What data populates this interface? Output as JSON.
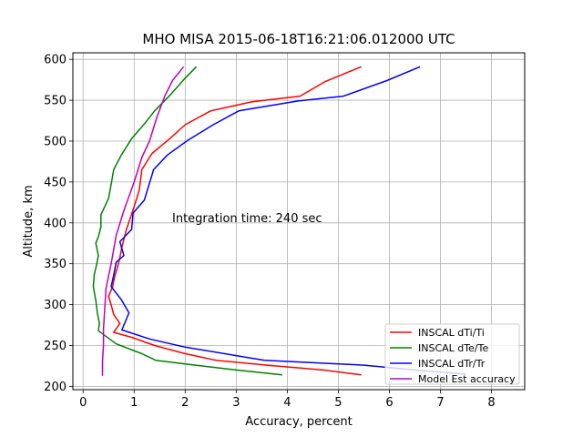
{
  "chart_data": {
    "type": "line",
    "title": "MHO MISA 2015-06-18T16:21:06.012000 UTC",
    "xlabel": "Accuracy, percent",
    "ylabel": "Altitude, km",
    "xlim": [
      -0.2,
      8.65
    ],
    "ylim": [
      196,
      608
    ],
    "xticks": [
      "0",
      "1",
      "2",
      "3",
      "4",
      "5",
      "6",
      "7",
      "8"
    ],
    "yticks": [
      "200",
      "250",
      "300",
      "350",
      "400",
      "450",
      "500",
      "550",
      "600"
    ],
    "grid": true,
    "legend_position": "lower-right",
    "annotation": "Integration time: 240 sec",
    "series": [
      {
        "name": "INSCAL dTi/Ti",
        "color": "#ff0000",
        "points": [
          [
            5.45,
            214
          ],
          [
            4.7,
            220
          ],
          [
            3.6,
            226
          ],
          [
            2.6,
            232
          ],
          [
            2.0,
            240
          ],
          [
            1.4,
            250
          ],
          [
            0.95,
            260
          ],
          [
            0.6,
            266
          ],
          [
            0.72,
            277
          ],
          [
            0.6,
            288
          ],
          [
            0.55,
            300
          ],
          [
            0.5,
            310
          ],
          [
            0.58,
            322
          ],
          [
            0.62,
            335
          ],
          [
            0.68,
            347
          ],
          [
            0.72,
            358
          ],
          [
            0.76,
            370
          ],
          [
            0.8,
            380
          ],
          [
            0.85,
            392
          ],
          [
            0.92,
            405
          ],
          [
            1.0,
            420
          ],
          [
            1.1,
            440
          ],
          [
            1.15,
            465
          ],
          [
            1.35,
            485
          ],
          [
            1.68,
            502
          ],
          [
            2.0,
            520
          ],
          [
            2.5,
            537
          ],
          [
            3.3,
            548
          ],
          [
            4.25,
            555
          ],
          [
            4.75,
            573
          ],
          [
            5.45,
            591
          ]
        ]
      },
      {
        "name": "INSCAL dTe/Te",
        "color": "#008000",
        "points": [
          [
            3.9,
            214
          ],
          [
            3.0,
            220
          ],
          [
            2.2,
            226
          ],
          [
            1.42,
            232
          ],
          [
            1.15,
            240
          ],
          [
            0.65,
            252
          ],
          [
            0.3,
            268
          ],
          [
            0.32,
            277
          ],
          [
            0.28,
            290
          ],
          [
            0.25,
            305
          ],
          [
            0.2,
            322
          ],
          [
            0.22,
            337
          ],
          [
            0.27,
            350
          ],
          [
            0.3,
            360
          ],
          [
            0.25,
            375
          ],
          [
            0.3,
            383
          ],
          [
            0.35,
            395
          ],
          [
            0.35,
            410
          ],
          [
            0.5,
            430
          ],
          [
            0.55,
            447
          ],
          [
            0.6,
            465
          ],
          [
            0.75,
            483
          ],
          [
            0.95,
            503
          ],
          [
            1.2,
            521
          ],
          [
            1.4,
            537
          ],
          [
            1.7,
            556
          ],
          [
            2.0,
            577
          ],
          [
            2.22,
            591
          ]
        ]
      },
      {
        "name": "INSCAL dTr/Tr",
        "color": "#0000ff",
        "points": [
          [
            7.5,
            215
          ],
          [
            6.5,
            220
          ],
          [
            5.5,
            226
          ],
          [
            3.55,
            232
          ],
          [
            2.0,
            248
          ],
          [
            1.3,
            258
          ],
          [
            0.76,
            269
          ],
          [
            0.9,
            290
          ],
          [
            0.75,
            306
          ],
          [
            0.55,
            322
          ],
          [
            0.6,
            336
          ],
          [
            0.65,
            352
          ],
          [
            0.8,
            360
          ],
          [
            0.72,
            377
          ],
          [
            0.95,
            392
          ],
          [
            0.98,
            412
          ],
          [
            1.2,
            428
          ],
          [
            1.38,
            465
          ],
          [
            1.65,
            483
          ],
          [
            2.05,
            501
          ],
          [
            2.55,
            520
          ],
          [
            3.05,
            537
          ],
          [
            4.2,
            549
          ],
          [
            5.1,
            555
          ],
          [
            5.95,
            574
          ],
          [
            6.6,
            591
          ]
        ]
      },
      {
        "name": "Model Est accuracy",
        "color": "#bf00bf",
        "points": [
          [
            0.38,
            213
          ],
          [
            0.38,
            230
          ],
          [
            0.4,
            250
          ],
          [
            0.4,
            270
          ],
          [
            0.42,
            290
          ],
          [
            0.45,
            320
          ],
          [
            0.55,
            350
          ],
          [
            0.65,
            385
          ],
          [
            0.8,
            415
          ],
          [
            1.0,
            450
          ],
          [
            1.15,
            480
          ],
          [
            1.3,
            500
          ],
          [
            1.45,
            530
          ],
          [
            1.6,
            555
          ],
          [
            1.75,
            574
          ],
          [
            1.97,
            591
          ]
        ]
      }
    ]
  }
}
